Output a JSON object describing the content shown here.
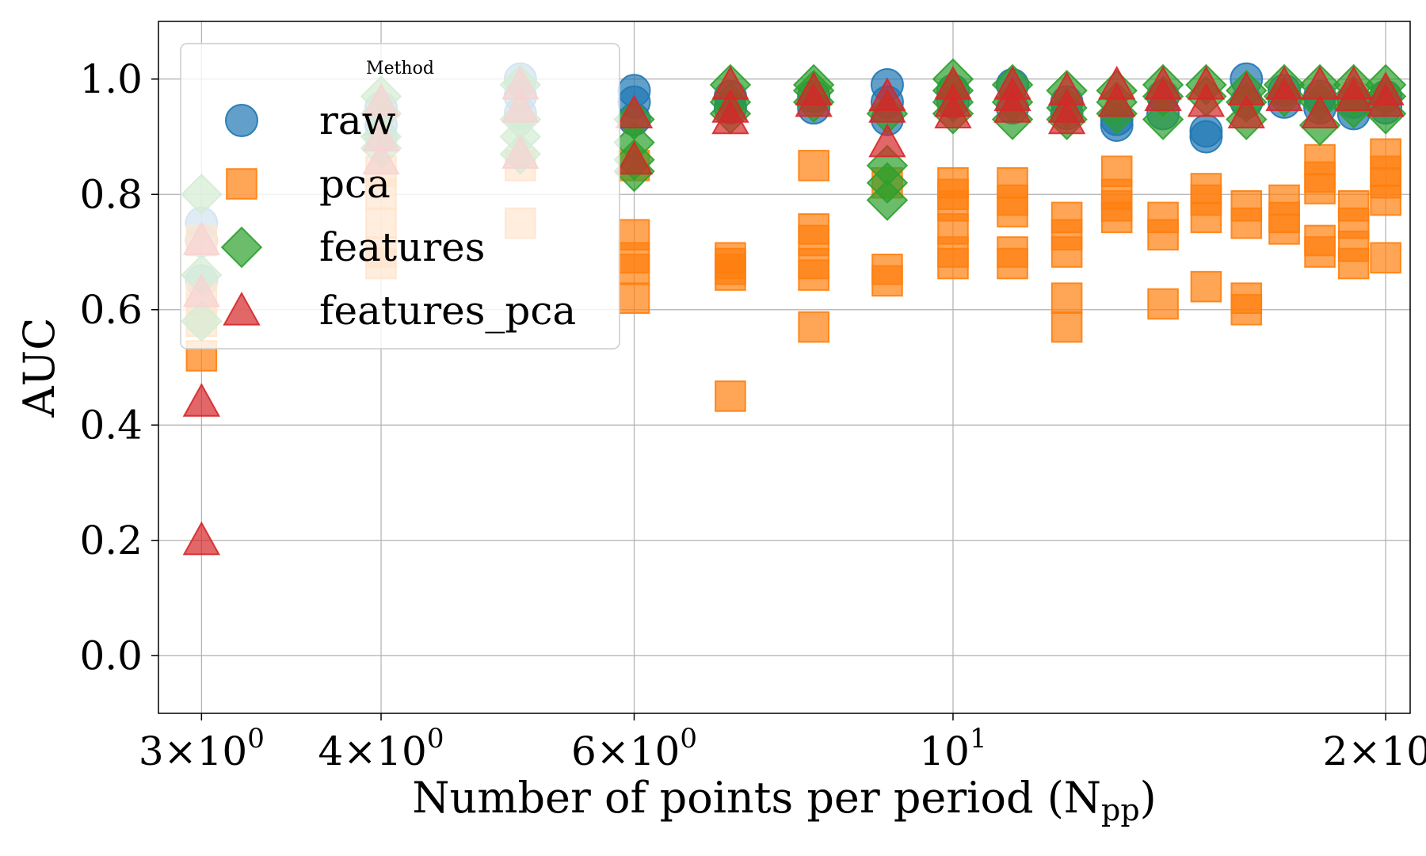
{
  "chart_data": {
    "type": "scatter",
    "title": "",
    "xlabel": "Number of points per period (N",
    "xlabel_sub": "pp",
    "xlabel_suffix": ")",
    "ylabel": "AUC",
    "xscale": "log",
    "xlim": [
      2.8,
      20.8
    ],
    "ylim": [
      -0.1,
      1.1
    ],
    "grid": true,
    "x_ticks": [
      {
        "value": 3,
        "mant": "3",
        "exp": "0"
      },
      {
        "value": 4,
        "mant": "4",
        "exp": "0"
      },
      {
        "value": 6,
        "mant": "6",
        "exp": "0"
      },
      {
        "value": 10,
        "mant": "",
        "exp": "1"
      },
      {
        "value": 20,
        "mant": "2",
        "exp": "1"
      }
    ],
    "y_ticks": [
      {
        "value": 0.0,
        "label": "0.0"
      },
      {
        "value": 0.2,
        "label": "0.2"
      },
      {
        "value": 0.4,
        "label": "0.4"
      },
      {
        "value": 0.6,
        "label": "0.6"
      },
      {
        "value": 0.8,
        "label": "0.8"
      },
      {
        "value": 1.0,
        "label": "1.0"
      }
    ],
    "legend": {
      "title": "Method",
      "placement": "upper-left",
      "entries": [
        "raw",
        "pca",
        "features",
        "features_pca"
      ]
    },
    "series": [
      {
        "name": "raw",
        "marker": "circle",
        "color": "#1f77b4",
        "points": [
          [
            3,
            0.75
          ],
          [
            3,
            0.65
          ],
          [
            3,
            0.72
          ],
          [
            4,
            0.95
          ],
          [
            4,
            0.92
          ],
          [
            4,
            0.9
          ],
          [
            5,
            1.0
          ],
          [
            5,
            0.97
          ],
          [
            5,
            0.94
          ],
          [
            6,
            0.98
          ],
          [
            6,
            0.96
          ],
          [
            6,
            0.93
          ],
          [
            7,
            0.97
          ],
          [
            7,
            0.95
          ],
          [
            8,
            0.95
          ],
          [
            8,
            0.97
          ],
          [
            9,
            0.99
          ],
          [
            9,
            0.96
          ],
          [
            9,
            0.93
          ],
          [
            10,
            0.98
          ],
          [
            10,
            0.96
          ],
          [
            11,
            0.99
          ],
          [
            11,
            0.95
          ],
          [
            12,
            0.96
          ],
          [
            12,
            0.94
          ],
          [
            13,
            0.93
          ],
          [
            13,
            0.92
          ],
          [
            14,
            0.94
          ],
          [
            14,
            0.97
          ],
          [
            15,
            0.91
          ],
          [
            15,
            0.9
          ],
          [
            16,
            1.0
          ],
          [
            16,
            0.96
          ],
          [
            17,
            0.98
          ],
          [
            17,
            0.96
          ],
          [
            18,
            0.97
          ],
          [
            18,
            0.95
          ],
          [
            19,
            0.96
          ],
          [
            19,
            0.94
          ],
          [
            20,
            0.97
          ],
          [
            20,
            0.95
          ]
        ]
      },
      {
        "name": "pca",
        "marker": "square",
        "color": "#ff7f0e",
        "points": [
          [
            3,
            0.72
          ],
          [
            3,
            0.62
          ],
          [
            3,
            0.58
          ],
          [
            3,
            0.52
          ],
          [
            4,
            0.84
          ],
          [
            4,
            0.8
          ],
          [
            4,
            0.75
          ],
          [
            4,
            0.7
          ],
          [
            4,
            0.68
          ],
          [
            5,
            0.85
          ],
          [
            5,
            0.75
          ],
          [
            6,
            0.85
          ],
          [
            6,
            0.73
          ],
          [
            6,
            0.69
          ],
          [
            6,
            0.67
          ],
          [
            6,
            0.62
          ],
          [
            7,
            0.69
          ],
          [
            7,
            0.68
          ],
          [
            7,
            0.67
          ],
          [
            7,
            0.66
          ],
          [
            7,
            0.45
          ],
          [
            8,
            0.85
          ],
          [
            8,
            0.74
          ],
          [
            8,
            0.72
          ],
          [
            8,
            0.68
          ],
          [
            8,
            0.66
          ],
          [
            8,
            0.57
          ],
          [
            9,
            0.82
          ],
          [
            9,
            0.67
          ],
          [
            9,
            0.65
          ],
          [
            10,
            0.82
          ],
          [
            10,
            0.8
          ],
          [
            10,
            0.78
          ],
          [
            10,
            0.74
          ],
          [
            10,
            0.7
          ],
          [
            10,
            0.68
          ],
          [
            11,
            0.82
          ],
          [
            11,
            0.79
          ],
          [
            11,
            0.77
          ],
          [
            11,
            0.7
          ],
          [
            11,
            0.68
          ],
          [
            12,
            0.76
          ],
          [
            12,
            0.73
          ],
          [
            12,
            0.7
          ],
          [
            12,
            0.62
          ],
          [
            12,
            0.57
          ],
          [
            13,
            0.84
          ],
          [
            13,
            0.8
          ],
          [
            13,
            0.78
          ],
          [
            13,
            0.76
          ],
          [
            14,
            0.76
          ],
          [
            14,
            0.73
          ],
          [
            14,
            0.61
          ],
          [
            15,
            0.81
          ],
          [
            15,
            0.79
          ],
          [
            15,
            0.76
          ],
          [
            15,
            0.64
          ],
          [
            16,
            0.78
          ],
          [
            16,
            0.75
          ],
          [
            16,
            0.62
          ],
          [
            16,
            0.6
          ],
          [
            17,
            0.79
          ],
          [
            17,
            0.76
          ],
          [
            17,
            0.74
          ],
          [
            18,
            0.86
          ],
          [
            18,
            0.83
          ],
          [
            18,
            0.81
          ],
          [
            18,
            0.72
          ],
          [
            18,
            0.7
          ],
          [
            19,
            0.78
          ],
          [
            19,
            0.75
          ],
          [
            19,
            0.71
          ],
          [
            19,
            0.68
          ],
          [
            20,
            0.87
          ],
          [
            20,
            0.84
          ],
          [
            20,
            0.82
          ],
          [
            20,
            0.79
          ],
          [
            20,
            0.69
          ]
        ]
      },
      {
        "name": "features",
        "marker": "diamond",
        "color": "#2ca02c",
        "points": [
          [
            3,
            0.8
          ],
          [
            3,
            0.66
          ],
          [
            3,
            0.58
          ],
          [
            4,
            0.97
          ],
          [
            4,
            0.94
          ],
          [
            4,
            0.9
          ],
          [
            4,
            0.88
          ],
          [
            5,
            0.99
          ],
          [
            5,
            0.93
          ],
          [
            5,
            0.9
          ],
          [
            5,
            0.87
          ],
          [
            6,
            0.93
          ],
          [
            6,
            0.89
          ],
          [
            6,
            0.86
          ],
          [
            6,
            0.84
          ],
          [
            7,
            0.99
          ],
          [
            7,
            0.96
          ],
          [
            7,
            0.94
          ],
          [
            8,
            0.99
          ],
          [
            8,
            0.98
          ],
          [
            8,
            0.96
          ],
          [
            9,
            0.94
          ],
          [
            9,
            0.85
          ],
          [
            9,
            0.82
          ],
          [
            9,
            0.79
          ],
          [
            10,
            1.0
          ],
          [
            10,
            0.98
          ],
          [
            10,
            0.96
          ],
          [
            10,
            0.94
          ],
          [
            11,
            0.99
          ],
          [
            11,
            0.96
          ],
          [
            11,
            0.93
          ],
          [
            12,
            0.98
          ],
          [
            12,
            0.95
          ],
          [
            12,
            0.93
          ],
          [
            13,
            0.98
          ],
          [
            13,
            0.96
          ],
          [
            13,
            0.94
          ],
          [
            14,
            0.99
          ],
          [
            14,
            0.97
          ],
          [
            14,
            0.93
          ],
          [
            15,
            0.99
          ],
          [
            15,
            0.97
          ],
          [
            16,
            0.98
          ],
          [
            16,
            0.96
          ],
          [
            16,
            0.93
          ],
          [
            17,
            0.99
          ],
          [
            17,
            0.97
          ],
          [
            18,
            0.99
          ],
          [
            18,
            0.96
          ],
          [
            18,
            0.92
          ],
          [
            19,
            0.99
          ],
          [
            19,
            0.97
          ],
          [
            19,
            0.95
          ],
          [
            20,
            0.99
          ],
          [
            20,
            0.97
          ],
          [
            20,
            0.94
          ]
        ]
      },
      {
        "name": "features_pca",
        "marker": "triangle",
        "color": "#d62728",
        "points": [
          [
            3,
            0.72
          ],
          [
            3,
            0.63
          ],
          [
            3,
            0.44
          ],
          [
            3,
            0.2
          ],
          [
            4,
            0.96
          ],
          [
            4,
            0.9
          ],
          [
            4,
            0.86
          ],
          [
            5,
            0.99
          ],
          [
            5,
            0.95
          ],
          [
            5,
            0.87
          ],
          [
            6,
            0.94
          ],
          [
            6,
            0.86
          ],
          [
            7,
            0.99
          ],
          [
            7,
            0.95
          ],
          [
            7,
            0.93
          ],
          [
            8,
            0.98
          ],
          [
            8,
            0.96
          ],
          [
            9,
            0.97
          ],
          [
            9,
            0.95
          ],
          [
            9,
            0.89
          ],
          [
            10,
            0.99
          ],
          [
            10,
            0.96
          ],
          [
            10,
            0.94
          ],
          [
            11,
            0.99
          ],
          [
            11,
            0.97
          ],
          [
            11,
            0.95
          ],
          [
            12,
            0.98
          ],
          [
            12,
            0.95
          ],
          [
            12,
            0.93
          ],
          [
            13,
            0.99
          ],
          [
            13,
            0.96
          ],
          [
            14,
            0.99
          ],
          [
            14,
            0.97
          ],
          [
            15,
            0.99
          ],
          [
            15,
            0.96
          ],
          [
            16,
            0.98
          ],
          [
            16,
            0.94
          ],
          [
            17,
            0.99
          ],
          [
            17,
            0.97
          ],
          [
            18,
            0.99
          ],
          [
            18,
            0.94
          ],
          [
            19,
            0.99
          ],
          [
            19,
            0.97
          ],
          [
            20,
            0.98
          ],
          [
            20,
            0.96
          ]
        ]
      }
    ]
  }
}
